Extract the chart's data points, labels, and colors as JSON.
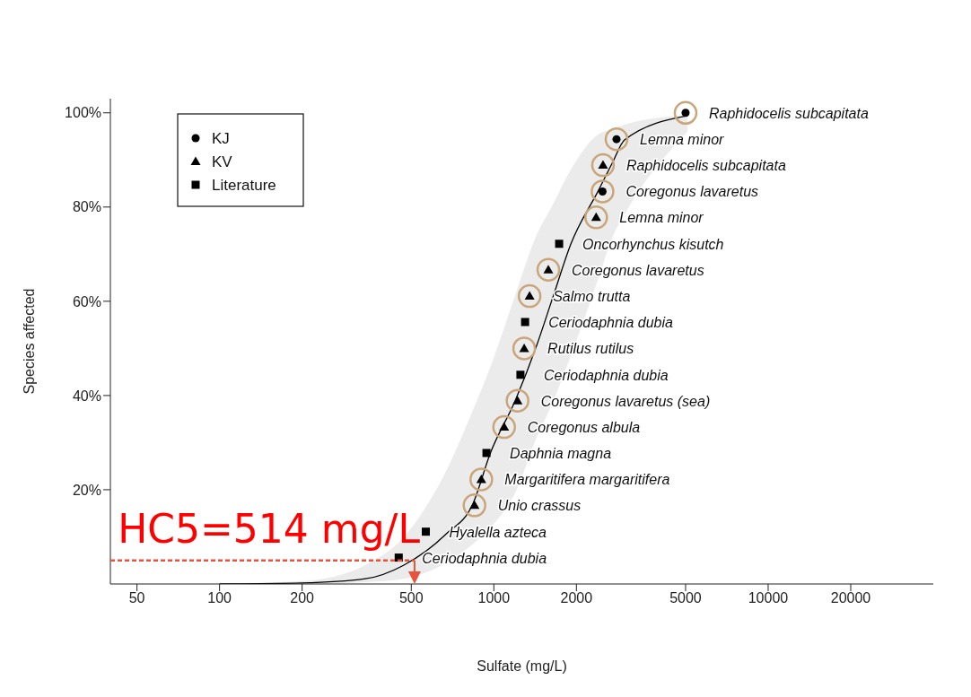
{
  "chart_data": {
    "type": "scatter",
    "xlabel": "Sulfate (mg/L)",
    "ylabel": "Species affected",
    "log": "x",
    "xlim": [
      40,
      40000
    ],
    "xticks": [
      50,
      100,
      200,
      500,
      1000,
      2000,
      5000,
      10000,
      20000
    ],
    "ylim": [
      0,
      103
    ],
    "yticks": [
      {
        "value": 20,
        "label": "20%"
      },
      {
        "value": 40,
        "label": "40%"
      },
      {
        "value": 60,
        "label": "60%"
      },
      {
        "value": 80,
        "label": "80%"
      },
      {
        "value": 100,
        "label": "100%"
      }
    ],
    "grid": false,
    "legend": "top left",
    "series": [
      {
        "type": "line",
        "color": "#000000",
        "marker": "none",
        "line_style": "solid",
        "x": [
          100,
          200,
          340,
          470,
          670,
          840,
          970,
          1200,
          1430,
          1640,
          1910,
          2410,
          2700,
          3000,
          5080
        ],
        "values": [
          0,
          0.2,
          1.1,
          4,
          10.6,
          17.1,
          27.7,
          39.1,
          50.5,
          60.8,
          72.2,
          83.6,
          89.3,
          94.3,
          99.4
        ],
        "lower": [
          0,
          0,
          0.4,
          1.1,
          4.5,
          8.5,
          11.9,
          19.5,
          31,
          38.6,
          48.5,
          65,
          73.5,
          78.5,
          96
        ],
        "upper": [
          0.1,
          0.6,
          4,
          10,
          24,
          37,
          46,
          61.5,
          74,
          80.5,
          88,
          95.5,
          96.5,
          97.5,
          99.5
        ]
      },
      {
        "type": "scatter",
        "marker": "circle",
        "color": "#c9a679",
        "x": [
          2490,
          2800,
          5000,
          850,
          900,
          1090,
          1220,
          1290,
          1350,
          1580,
          2360,
          2500
        ],
        "values": [
          83.3,
          94.4,
          100,
          16.7,
          22.2,
          33.3,
          38.9,
          50,
          61.1,
          66.7,
          77.8,
          88.9
        ]
      },
      {
        "name": "KJ",
        "type": "scatter",
        "marker": "circle",
        "color": "#000000",
        "x": [
          2490,
          2800,
          5000
        ],
        "values": [
          83.3,
          94.4,
          100
        ],
        "value_labels": [
          "Coregonus lavaretus",
          "Lemna minor",
          "Raphidocelis subcapitata"
        ]
      },
      {
        "name": "KV",
        "type": "scatter",
        "marker": "triangle",
        "color": "#000000",
        "x": [
          850,
          900,
          1090,
          1220,
          1290,
          1350,
          1580,
          2360,
          2500
        ],
        "values": [
          16.7,
          22.2,
          33.3,
          38.9,
          50,
          61.1,
          66.7,
          77.8,
          88.9
        ],
        "value_labels": [
          "Unio crassus",
          "Margaritifera margaritifera",
          "Coregonus albula",
          "Coregonus lavaretus (sea)",
          "Rutilus rutilus",
          "Salmo trutta",
          "Coregonus lavaretus",
          "Lemna minor",
          "Raphidocelis subcapitata"
        ]
      },
      {
        "name": "Literature",
        "type": "scatter",
        "marker": "square",
        "color": "#000000",
        "x": [
          450,
          565,
          940,
          1250,
          1300,
          1730
        ],
        "values": [
          5.6,
          11.1,
          27.8,
          44.4,
          55.6,
          72.2
        ],
        "value_labels": [
          "Ceriodaphnia dubia",
          "Hyalella azteca",
          "Daphnia magna",
          "Ceriodaphnia dubia",
          "Ceriodaphnia dubia",
          "Oncorhynchus kisutch"
        ]
      }
    ],
    "annotations": [
      {
        "text": "HC5=514 mg/L",
        "x": 514,
        "y": 5
      }
    ]
  }
}
